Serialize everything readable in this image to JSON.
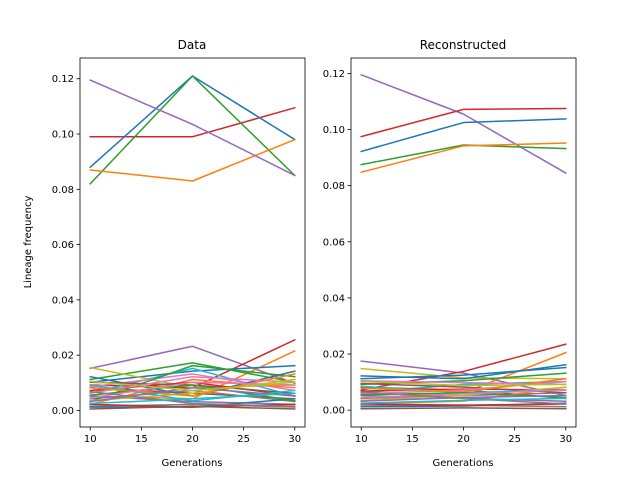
{
  "chart_data": [
    {
      "type": "line",
      "title": "Data",
      "xlabel": "Generations",
      "ylabel": "Lineage frequency",
      "xlim": [
        9.0,
        31.0
      ],
      "ylim": [
        -0.006,
        0.1275
      ],
      "x_ticks": [
        10,
        15,
        20,
        25,
        30
      ],
      "x_tick_labels": [
        "10",
        "15",
        "20",
        "25",
        "30"
      ],
      "y_ticks": [
        0.0,
        0.02,
        0.04,
        0.06,
        0.08,
        0.1,
        0.12
      ],
      "y_tick_labels": [
        "0.00",
        "0.02",
        "0.04",
        "0.06",
        "0.08",
        "0.10",
        "0.12"
      ],
      "grid": false,
      "x": [
        10,
        20,
        30
      ],
      "series": [
        {
          "color": "#d62728",
          "values": [
            0.099,
            0.099,
            0.1095
          ]
        },
        {
          "color": "#1f77b4",
          "values": [
            0.088,
            0.121,
            0.098
          ]
        },
        {
          "color": "#2ca02c",
          "values": [
            0.082,
            0.121,
            0.085
          ]
        },
        {
          "color": "#ff7f0e",
          "values": [
            0.087,
            0.083,
            0.098
          ]
        },
        {
          "color": "#9467bd",
          "values": [
            0.1195,
            0.1035,
            0.085
          ]
        },
        {
          "color": "#9467bd",
          "values": [
            0.0152,
            0.0232,
            0.0098
          ]
        },
        {
          "color": "#d62728",
          "values": [
            0.0092,
            0.0082,
            0.0255
          ]
        },
        {
          "color": "#ff7f0e",
          "values": [
            0.0052,
            0.0042,
            0.0215
          ]
        },
        {
          "color": "#2ca02c",
          "values": [
            0.0112,
            0.0172,
            0.0102
          ]
        },
        {
          "color": "#1f77b4",
          "values": [
            0.0102,
            0.0142,
            0.0162
          ]
        },
        {
          "color": "#bcbd22",
          "values": [
            0.0155,
            0.0082,
            0.0092
          ]
        },
        {
          "color": "#17becf",
          "values": [
            0.0062,
            0.0152,
            0.0052
          ]
        },
        {
          "color": "#e377c2",
          "values": [
            0.0085,
            0.0132,
            0.0072
          ]
        },
        {
          "color": "#8c564b",
          "values": [
            0.0082,
            0.0062,
            0.0042
          ]
        },
        {
          "color": "#7f7f7f",
          "values": [
            0.0042,
            0.0072,
            0.0032
          ]
        },
        {
          "color": "#2ca02c",
          "values": [
            0.0032,
            0.0162,
            0.0122
          ]
        },
        {
          "color": "#1f77b4",
          "values": [
            0.0122,
            0.0052,
            0.0142
          ]
        },
        {
          "color": "#ff7f0e",
          "values": [
            0.0022,
            0.0112,
            0.0082
          ]
        },
        {
          "color": "#d62728",
          "values": [
            0.0072,
            0.0102,
            0.0052
          ]
        },
        {
          "color": "#9467bd",
          "values": [
            0.0052,
            0.0032,
            0.0022
          ]
        },
        {
          "color": "#8c564b",
          "values": [
            0.0102,
            0.0092,
            0.0062
          ]
        },
        {
          "color": "#e377c2",
          "values": [
            0.0062,
            0.0122,
            0.0102
          ]
        },
        {
          "color": "#7f7f7f",
          "values": [
            0.0015,
            0.0022,
            0.0012
          ]
        },
        {
          "color": "#bcbd22",
          "values": [
            0.0035,
            0.0062,
            0.0112
          ]
        },
        {
          "color": "#17becf",
          "values": [
            0.0092,
            0.0035,
            0.0072
          ]
        },
        {
          "color": "#1f77b4",
          "values": [
            0.0012,
            0.0012,
            0.0042
          ]
        },
        {
          "color": "#ff7f0e",
          "values": [
            0.0082,
            0.0052,
            0.0132
          ]
        },
        {
          "color": "#2ca02c",
          "values": [
            0.0055,
            0.0092,
            0.0035
          ]
        },
        {
          "color": "#d62728",
          "values": [
            0.0022,
            0.0012,
            0.0022
          ]
        },
        {
          "color": "#9467bd",
          "values": [
            0.0032,
            0.0082,
            0.0052
          ]
        },
        {
          "color": "#8c564b",
          "values": [
            0.0005,
            0.0015,
            0.0005
          ]
        },
        {
          "color": "#e377c2",
          "values": [
            0.0045,
            0.0102,
            0.0092
          ]
        },
        {
          "color": "#7f7f7f",
          "values": [
            0.0068,
            0.0025,
            0.0015
          ]
        },
        {
          "color": "#bcbd22",
          "values": [
            0.0105,
            0.0072,
            0.0102
          ]
        },
        {
          "color": "#17becf",
          "values": [
            0.0025,
            0.0042,
            0.0062
          ]
        }
      ]
    },
    {
      "type": "line",
      "title": "Reconstructed",
      "xlabel": "Generations",
      "ylabel": "",
      "xlim": [
        9.0,
        31.0
      ],
      "ylim": [
        -0.006,
        0.1255
      ],
      "x_ticks": [
        10,
        15,
        20,
        25,
        30
      ],
      "x_tick_labels": [
        "10",
        "15",
        "20",
        "25",
        "30"
      ],
      "y_ticks": [
        0.0,
        0.02,
        0.04,
        0.06,
        0.08,
        0.1,
        0.12
      ],
      "y_tick_labels": [
        "0.00",
        "0.02",
        "0.04",
        "0.06",
        "0.08",
        "0.10",
        "0.12"
      ],
      "grid": false,
      "x": [
        10,
        20,
        30
      ],
      "series": [
        {
          "color": "#9467bd",
          "values": [
            0.1195,
            0.1055,
            0.0845
          ]
        },
        {
          "color": "#d62728",
          "values": [
            0.0975,
            0.1072,
            0.1075
          ]
        },
        {
          "color": "#1f77b4",
          "values": [
            0.0922,
            0.1025,
            0.1038
          ]
        },
        {
          "color": "#2ca02c",
          "values": [
            0.0875,
            0.0945,
            0.0932
          ]
        },
        {
          "color": "#ff7f0e",
          "values": [
            0.0848,
            0.0942,
            0.0952
          ]
        },
        {
          "color": "#9467bd",
          "values": [
            0.0175,
            0.0132,
            0.0052
          ]
        },
        {
          "color": "#d62728",
          "values": [
            0.0072,
            0.0138,
            0.0235
          ]
        },
        {
          "color": "#ff7f0e",
          "values": [
            0.0042,
            0.0062,
            0.0205
          ]
        },
        {
          "color": "#bcbd22",
          "values": [
            0.0148,
            0.0115,
            0.0112
          ]
        },
        {
          "color": "#1f77b4",
          "values": [
            0.0112,
            0.0125,
            0.0152
          ]
        },
        {
          "color": "#2ca02c",
          "values": [
            0.0092,
            0.0105,
            0.0132
          ]
        },
        {
          "color": "#17becf",
          "values": [
            0.0062,
            0.0092,
            0.0102
          ]
        },
        {
          "color": "#e377c2",
          "values": [
            0.0105,
            0.0098,
            0.0092
          ]
        },
        {
          "color": "#8c564b",
          "values": [
            0.0082,
            0.0072,
            0.0042
          ]
        },
        {
          "color": "#7f7f7f",
          "values": [
            0.0042,
            0.0052,
            0.0062
          ]
        },
        {
          "color": "#1f77b4",
          "values": [
            0.0122,
            0.0112,
            0.0162
          ]
        },
        {
          "color": "#ff7f0e",
          "values": [
            0.0022,
            0.0032,
            0.0082
          ]
        },
        {
          "color": "#d62728",
          "values": [
            0.0068,
            0.0075,
            0.0072
          ]
        },
        {
          "color": "#9467bd",
          "values": [
            0.0052,
            0.0042,
            0.0032
          ]
        },
        {
          "color": "#8c564b",
          "values": [
            0.0095,
            0.0082,
            0.0062
          ]
        },
        {
          "color": "#e377c2",
          "values": [
            0.0058,
            0.0072,
            0.0102
          ]
        },
        {
          "color": "#7f7f7f",
          "values": [
            0.0015,
            0.0018,
            0.0012
          ]
        },
        {
          "color": "#bcbd22",
          "values": [
            0.0035,
            0.0052,
            0.0082
          ]
        },
        {
          "color": "#17becf",
          "values": [
            0.0085,
            0.0062,
            0.0072
          ]
        },
        {
          "color": "#1f77b4",
          "values": [
            0.0012,
            0.0015,
            0.0025
          ]
        },
        {
          "color": "#ff7f0e",
          "values": [
            0.0078,
            0.0065,
            0.0112
          ]
        },
        {
          "color": "#2ca02c",
          "values": [
            0.0055,
            0.0062,
            0.0045
          ]
        },
        {
          "color": "#d62728",
          "values": [
            0.0022,
            0.0018,
            0.0022
          ]
        },
        {
          "color": "#9467bd",
          "values": [
            0.0032,
            0.0045,
            0.0052
          ]
        },
        {
          "color": "#8c564b",
          "values": [
            0.0005,
            0.0008,
            0.0005
          ]
        },
        {
          "color": "#e377c2",
          "values": [
            0.0045,
            0.0058,
            0.0072
          ]
        },
        {
          "color": "#7f7f7f",
          "values": [
            0.0065,
            0.0042,
            0.0022
          ]
        },
        {
          "color": "#bcbd22",
          "values": [
            0.0102,
            0.0088,
            0.0092
          ]
        },
        {
          "color": "#17becf",
          "values": [
            0.0025,
            0.0035,
            0.0042
          ]
        }
      ]
    }
  ]
}
